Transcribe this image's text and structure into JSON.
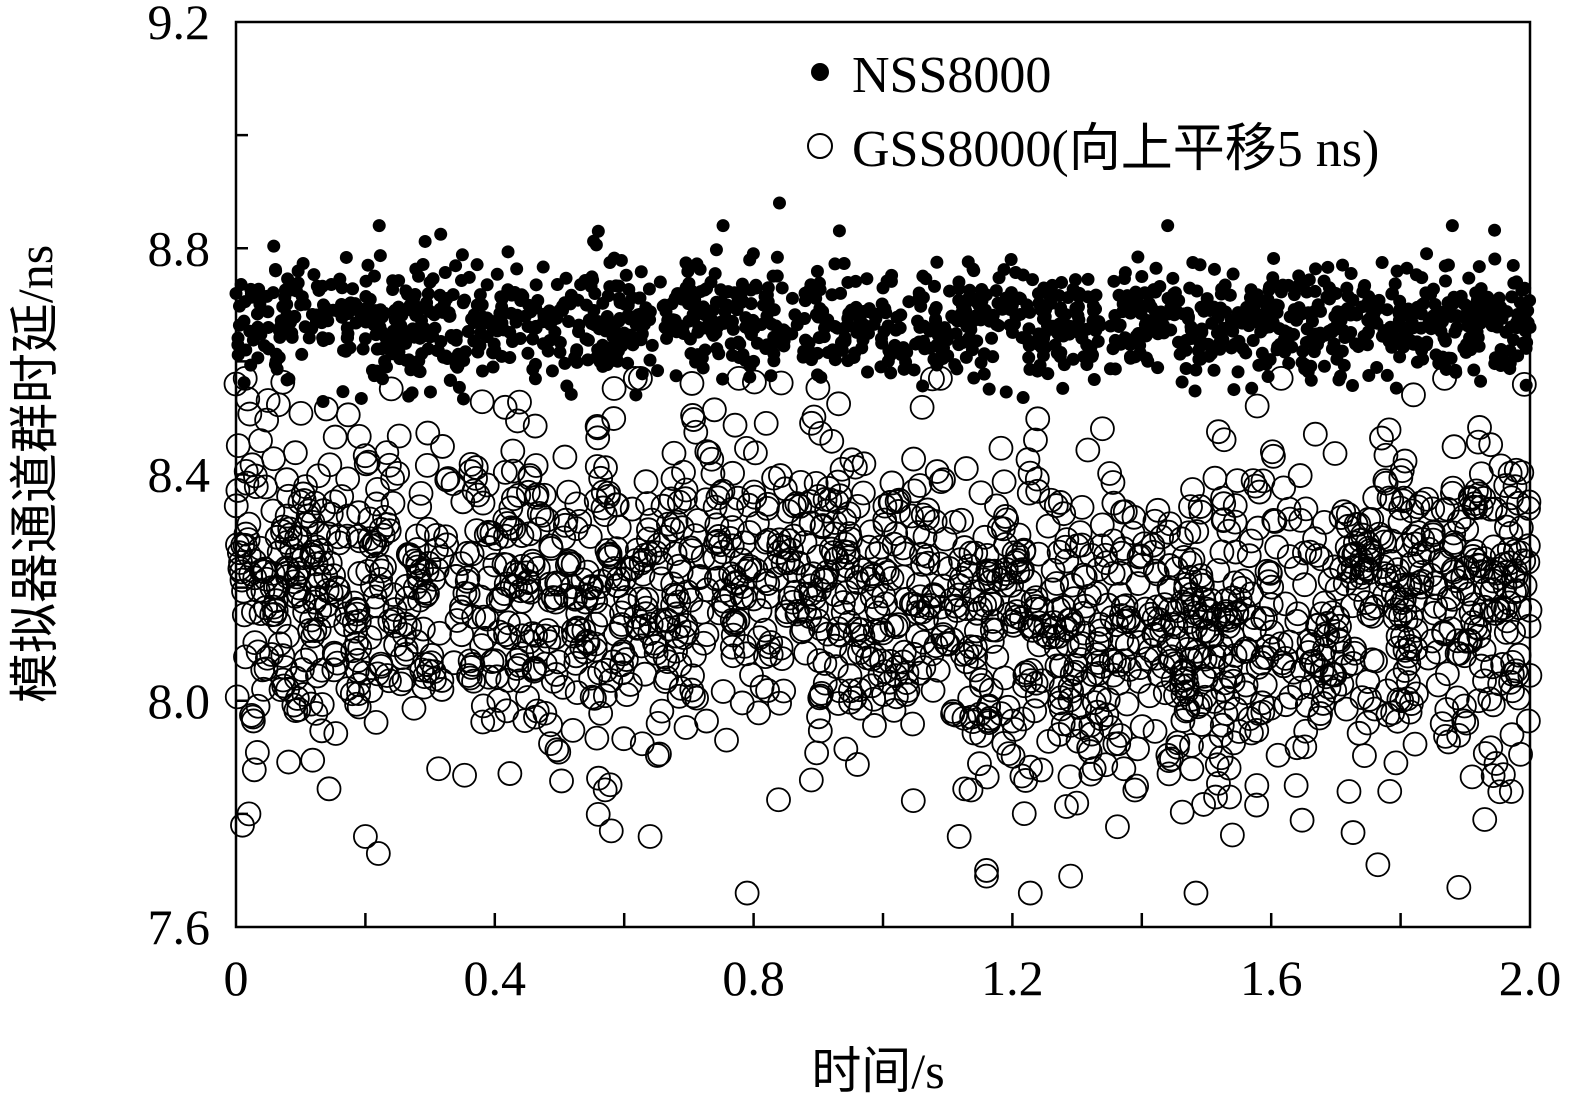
{
  "chart_data": {
    "type": "scatter",
    "title": "",
    "xlabel": "时间/s",
    "ylabel": "模拟器通道群时延/ns",
    "xlim": [
      0,
      2.0
    ],
    "ylim": [
      7.6,
      9.2
    ],
    "x_ticks": [
      0,
      0.4,
      0.8,
      1.2,
      1.6,
      2.0
    ],
    "x_tick_labels": [
      "0",
      "0.4",
      "0.8",
      "1.2",
      "1.6",
      "2.0"
    ],
    "y_ticks": [
      7.6,
      8.0,
      8.4,
      8.8,
      9.2
    ],
    "y_tick_labels": [
      "7.6",
      "8.0",
      "8.4",
      "8.8",
      "9.2"
    ],
    "grid": false,
    "legend": "top-right",
    "series": [
      {
        "name": "NSS8000",
        "marker": "filled-circle",
        "color": "#000000",
        "points": 1400,
        "mean": 8.67,
        "spread_min": 8.52,
        "spread_max": 8.88,
        "note_values": [
          [
            0.0,
            8.72
          ],
          [
            0.05,
            8.66
          ],
          [
            0.1,
            8.7
          ],
          [
            0.2,
            8.64
          ],
          [
            0.3,
            8.74
          ],
          [
            0.4,
            8.62
          ],
          [
            0.5,
            8.69
          ],
          [
            0.56,
            8.83
          ],
          [
            0.6,
            8.65
          ],
          [
            0.7,
            8.71
          ],
          [
            0.8,
            8.6
          ],
          [
            0.84,
            8.88
          ],
          [
            0.9,
            8.68
          ],
          [
            1.0,
            8.73
          ],
          [
            1.1,
            8.61
          ],
          [
            1.2,
            8.7
          ],
          [
            1.3,
            8.66
          ],
          [
            1.4,
            8.75
          ],
          [
            1.44,
            8.84
          ],
          [
            1.5,
            8.63
          ],
          [
            1.6,
            8.69
          ],
          [
            1.7,
            8.72
          ],
          [
            1.8,
            8.64
          ],
          [
            1.88,
            8.84
          ],
          [
            1.9,
            8.7
          ],
          [
            2.0,
            8.66
          ]
        ]
      },
      {
        "name": "GSS8000(向上平移5 ns)",
        "marker": "open-circle",
        "color": "#000000",
        "points": 1900,
        "mean": 8.17,
        "spread_min": 7.66,
        "spread_max": 8.57,
        "note_values": [
          [
            0.0,
            8.56
          ],
          [
            0.01,
            7.78
          ],
          [
            0.02,
            7.8
          ],
          [
            0.2,
            7.76
          ],
          [
            0.22,
            7.73
          ],
          [
            0.4,
            8.24
          ],
          [
            0.58,
            7.77
          ],
          [
            0.64,
            7.76
          ],
          [
            0.79,
            7.66
          ],
          [
            0.8,
            8.18
          ],
          [
            1.0,
            8.12
          ],
          [
            1.16,
            7.7
          ],
          [
            1.16,
            7.69
          ],
          [
            1.2,
            8.14
          ],
          [
            1.29,
            7.69
          ],
          [
            1.4,
            8.24
          ],
          [
            1.6,
            8.17
          ],
          [
            1.8,
            8.15
          ],
          [
            1.89,
            7.67
          ],
          [
            1.93,
            7.79
          ],
          [
            2.0,
            8.16
          ]
        ]
      }
    ]
  }
}
